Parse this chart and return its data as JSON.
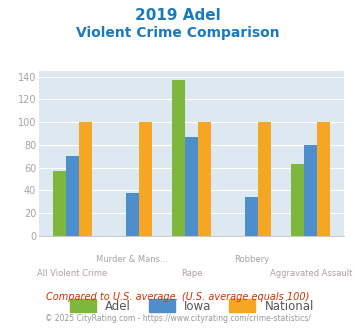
{
  "title_line1": "2019 Adel",
  "title_line2": "Violent Crime Comparison",
  "categories": [
    "All Violent Crime",
    "Murder & Mans...",
    "Rape",
    "Robbery",
    "Aggravated Assault"
  ],
  "category_labels_row1": [
    "",
    "Murder & Mans...",
    "",
    "Robbery",
    ""
  ],
  "category_labels_row2": [
    "All Violent Crime",
    "",
    "Rape",
    "",
    "Aggravated Assault"
  ],
  "adel": [
    57,
    0,
    137,
    0,
    63
  ],
  "iowa": [
    70,
    38,
    87,
    34,
    80
  ],
  "national": [
    100,
    100,
    100,
    100,
    100
  ],
  "adel_color": "#7db73b",
  "iowa_color": "#4d8fcc",
  "national_color": "#f5a623",
  "ylim": [
    0,
    145
  ],
  "yticks": [
    0,
    20,
    40,
    60,
    80,
    100,
    120,
    140
  ],
  "plot_bg": "#dde8f0",
  "title_color": "#1a7abf",
  "xlabel_color": "#b0a0a0",
  "ytick_color": "#b0a0a0",
  "footnote1": "Compared to U.S. average. (U.S. average equals 100)",
  "footnote2": "© 2025 CityRating.com - https://www.cityrating.com/crime-statistics/",
  "footnote1_color": "#cc3300",
  "footnote2_color": "#999999",
  "legend_text_color": "#555555",
  "bar_width": 0.22
}
